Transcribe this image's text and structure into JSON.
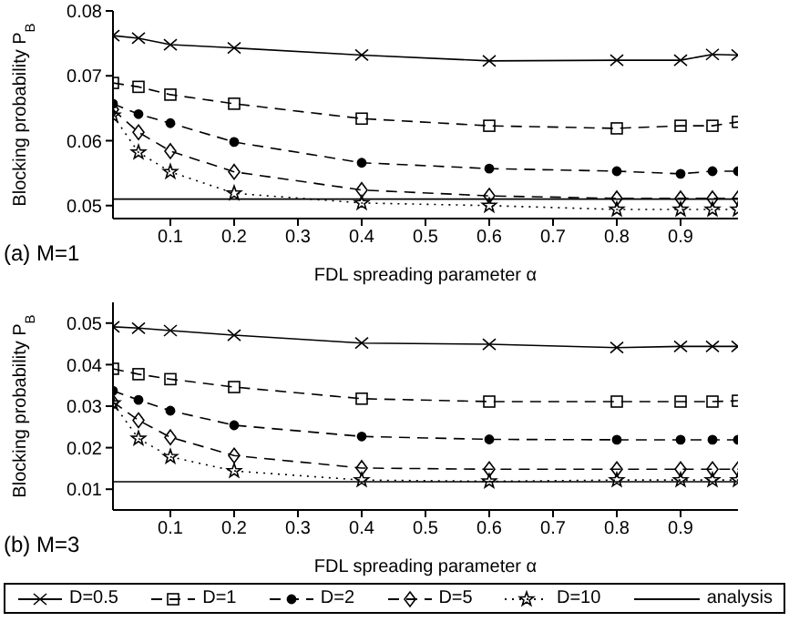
{
  "chart_data": [
    {
      "type": "line",
      "xlabel": "FDL spreading parameter α",
      "ylabel": "Blocking probability P$_{B}$",
      "annotations": [
        "(a) M=1"
      ],
      "x": [
        0.01,
        0.05,
        0.1,
        0.2,
        0.4,
        0.6,
        0.8,
        0.9,
        0.95,
        0.99
      ],
      "xlim": [
        0.01,
        0.99
      ],
      "xticks": [
        0.1,
        0.2,
        0.3,
        0.4,
        0.5,
        0.6,
        0.7,
        0.8,
        0.9
      ],
      "ylim": [
        0.048,
        0.08
      ],
      "yticks": [
        0.05,
        0.06,
        0.07,
        0.08
      ],
      "series": [
        {
          "color": "#000000",
          "marker": "cross",
          "line_style": "solid",
          "values": [
            0.0762,
            0.0758,
            0.0748,
            0.0743,
            0.0732,
            0.0723,
            0.0724,
            0.0724,
            0.0733,
            0.0732
          ]
        },
        {
          "color": "#000000",
          "marker": "square",
          "line_style": "dashed",
          "values": [
            0.0689,
            0.0683,
            0.0671,
            0.0657,
            0.0634,
            0.0623,
            0.0619,
            0.0623,
            0.0623,
            0.0629
          ]
        },
        {
          "color": "#000000",
          "marker": "circle",
          "line_style": "dashed",
          "values": [
            0.0657,
            0.0641,
            0.0627,
            0.0598,
            0.0566,
            0.0557,
            0.0553,
            0.0549,
            0.0553,
            0.0553
          ]
        },
        {
          "color": "#000000",
          "marker": "diamond",
          "line_style": "dashed",
          "values": [
            0.0648,
            0.0613,
            0.0584,
            0.0552,
            0.0524,
            0.0515,
            0.0511,
            0.0511,
            0.0511,
            0.0511
          ]
        },
        {
          "color": "#000000",
          "marker": "star",
          "line_style": "dotted",
          "values": [
            0.0639,
            0.0582,
            0.0552,
            0.0519,
            0.0504,
            0.05,
            0.0494,
            0.0494,
            0.0494,
            0.0494
          ]
        }
      ],
      "ref_lines": [
        {
          "axis": "y",
          "value": 0.051,
          "color": "#000000",
          "line_style": "solid"
        }
      ]
    },
    {
      "type": "line",
      "xlabel": "FDL spreading parameter α",
      "ylabel": "Blocking probability P$_{B}$",
      "annotations": [
        "(b) M=3"
      ],
      "legend": "bottom",
      "x": [
        0.01,
        0.05,
        0.1,
        0.2,
        0.4,
        0.6,
        0.8,
        0.9,
        0.95,
        0.99
      ],
      "xlim": [
        0.01,
        0.99
      ],
      "xticks": [
        0.1,
        0.2,
        0.3,
        0.4,
        0.5,
        0.6,
        0.7,
        0.8,
        0.9
      ],
      "ylim": [
        0.005,
        0.055
      ],
      "yticks": [
        0.01,
        0.02,
        0.03,
        0.04,
        0.05
      ],
      "series": [
        {
          "name": "D=0.5",
          "color": "#000000",
          "marker": "cross",
          "line_style": "solid",
          "values": [
            0.0491,
            0.0488,
            0.0482,
            0.0471,
            0.0452,
            0.0449,
            0.0441,
            0.0444,
            0.0444,
            0.0444
          ]
        },
        {
          "name": "D=1",
          "color": "#000000",
          "marker": "square",
          "line_style": "dashed",
          "values": [
            0.039,
            0.0377,
            0.0365,
            0.0346,
            0.0318,
            0.0311,
            0.0311,
            0.0311,
            0.0311,
            0.0313
          ]
        },
        {
          "name": "D=2",
          "color": "#000000",
          "marker": "circle",
          "line_style": "dashed",
          "values": [
            0.0337,
            0.0315,
            0.0289,
            0.0254,
            0.0227,
            0.022,
            0.0219,
            0.0219,
            0.0219,
            0.0219
          ]
        },
        {
          "name": "D=5",
          "color": "#000000",
          "marker": "diamond",
          "line_style": "dashed",
          "values": [
            0.031,
            0.0266,
            0.0225,
            0.0181,
            0.0151,
            0.0148,
            0.0148,
            0.0148,
            0.0148,
            0.0148
          ]
        },
        {
          "name": "D=10",
          "color": "#000000",
          "marker": "star",
          "line_style": "dotted",
          "values": [
            0.0307,
            0.0222,
            0.0178,
            0.0144,
            0.0122,
            0.0119,
            0.0122,
            0.0122,
            0.0122,
            0.0122
          ]
        }
      ],
      "ref_lines": [
        {
          "axis": "y",
          "value": 0.0118,
          "label": "analysis",
          "color": "#000000",
          "line_style": "solid"
        }
      ]
    }
  ]
}
